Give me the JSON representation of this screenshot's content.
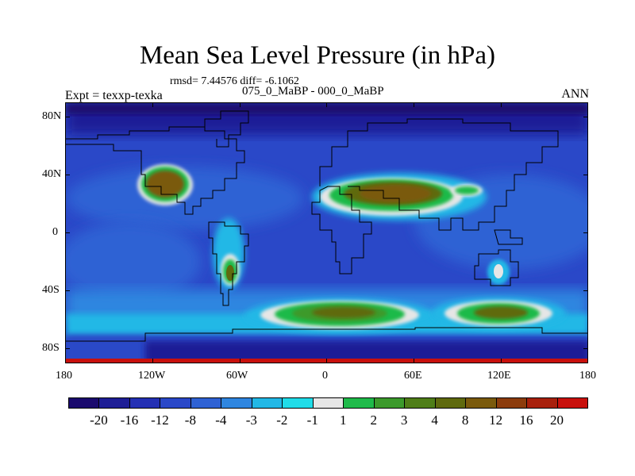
{
  "title": "Mean Sea Level Pressure (in hPa)",
  "stats": "rmsd= 7.44576 diff= -6.1062",
  "subtitle": "075_0_MaBP - 000_0_MaBP",
  "left_string": "Expt = texxp-texka",
  "right_string": "ANN",
  "lat_ticks": [
    "80N",
    "40N",
    "0",
    "40S",
    "80S"
  ],
  "lon_ticks": [
    "180",
    "120W",
    "60W",
    "0",
    "60E",
    "120E",
    "180"
  ],
  "colorbar": {
    "colors": [
      "#1a0a6e",
      "#1e1e96",
      "#2430b4",
      "#2a48c8",
      "#2f62d4",
      "#2f86e0",
      "#22b8e6",
      "#20dce8",
      "#e6e6e6",
      "#1fba4a",
      "#3c9a2c",
      "#4f7e18",
      "#5f6a0e",
      "#7a5a0c",
      "#8c3c0c",
      "#a8200c",
      "#c8100c"
    ],
    "labels": [
      "-20",
      "-16",
      "-12",
      "-8",
      "-4",
      "-3",
      "-2",
      "-1",
      "1",
      "2",
      "3",
      "4",
      "8",
      "12",
      "16",
      "20"
    ]
  },
  "map_colors": {
    "ocean_base": "#2a48c8",
    "deep_low": "#1e1e96",
    "land_blue": "#2f62d4",
    "mid": "#2f86e0",
    "cyan": "#22b8e6",
    "light_cyan": "#20dce8",
    "white": "#e6e6e6",
    "green": "#1fba4a",
    "dark_green": "#3c9a2c",
    "olive": "#5f6a0e",
    "brown": "#7a5a0c",
    "red": "#c8100c"
  }
}
